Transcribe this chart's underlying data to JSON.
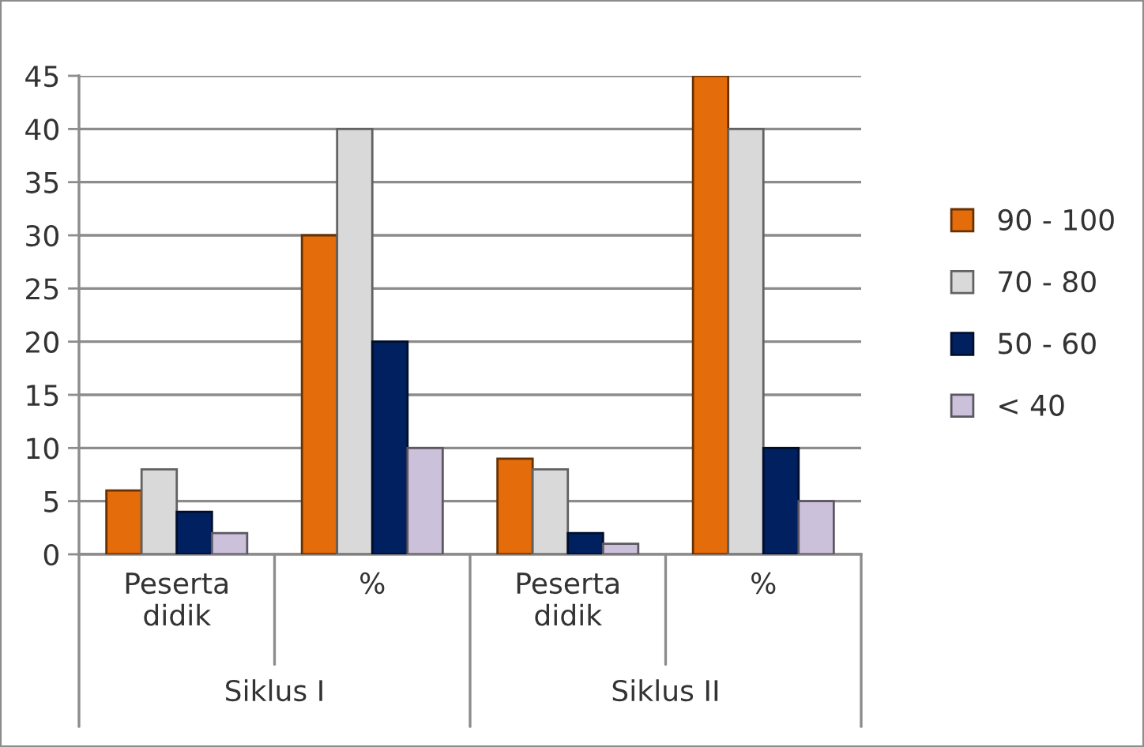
{
  "chart_data": {
    "type": "bar",
    "categories": [
      "Peserta didik",
      "%",
      "Peserta didik",
      "%"
    ],
    "annotations": [
      "Siklus I",
      "Siklus II"
    ],
    "series": [
      {
        "name": "90 - 100",
        "color": "#e46c0a",
        "values": [
          6,
          30,
          9,
          45
        ]
      },
      {
        "name": "70 - 80",
        "color": "#d9d9d9",
        "values": [
          8,
          40,
          8,
          40
        ]
      },
      {
        "name": "50 - 60",
        "color": "#002060",
        "values": [
          4,
          20,
          2,
          10
        ]
      },
      {
        "name": "< 40",
        "color": "#ccc1da",
        "values": [
          2,
          10,
          1,
          5
        ]
      }
    ],
    "ylim": [
      0,
      45
    ],
    "yticks": [
      0,
      5,
      10,
      15,
      20,
      25,
      30,
      35,
      40,
      45
    ],
    "grid": "y",
    "legend": "right"
  }
}
